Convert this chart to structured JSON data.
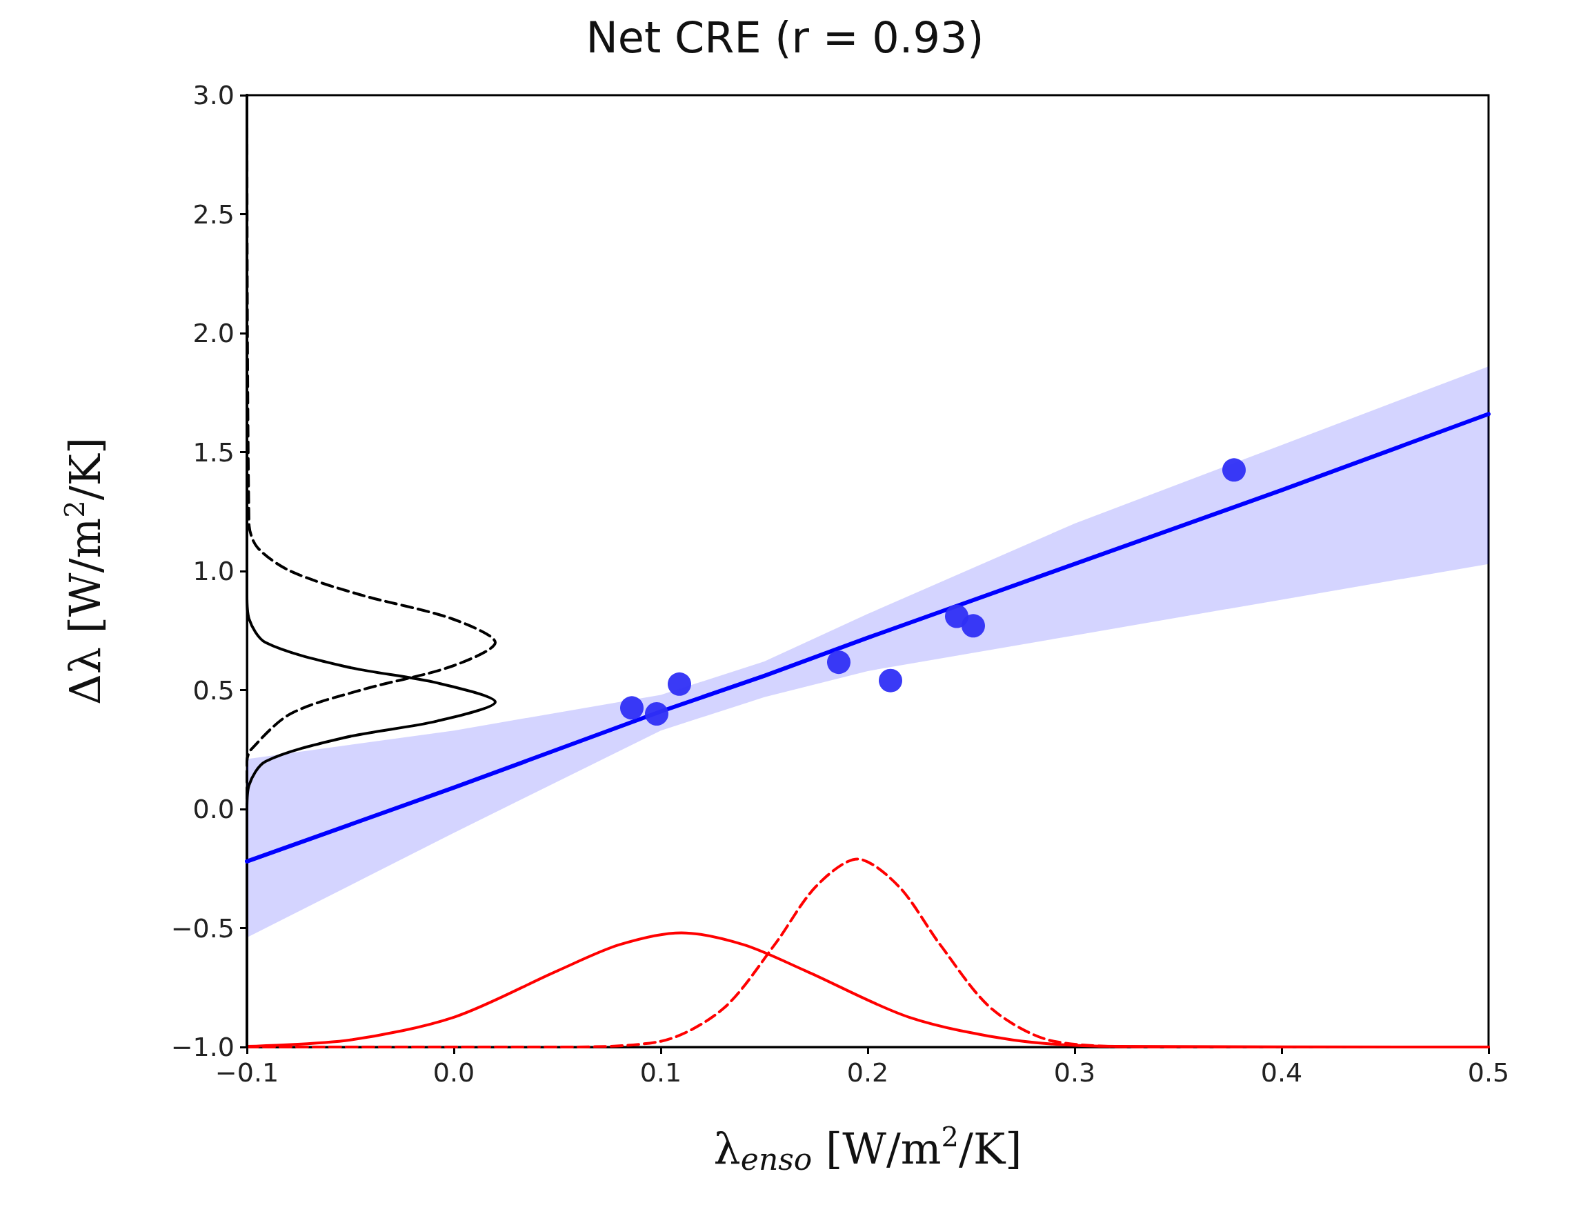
{
  "chart_data": {
    "type": "scatter",
    "title": "Net CRE (r = 0.93)",
    "xlabel": "λ$_{enso}$ [W/m$^{2}$/K]",
    "ylabel": "Δλ [W/m$^{2}$/K]",
    "xlim": [
      -0.1,
      0.5
    ],
    "xticks": [
      {
        "value": -0.1,
        "label": "−0.1"
      },
      {
        "value": 0,
        "label": "0.0"
      },
      0.1,
      0.2,
      0.3,
      0.4,
      0.5
    ],
    "ylim": [
      -1,
      3
    ],
    "yticks": [
      {
        "value": -1,
        "label": "−1.0"
      },
      {
        "value": -0.5,
        "label": "−0.5"
      },
      {
        "value": 0,
        "label": "0.0"
      },
      0.5,
      {
        "value": 1,
        "label": "1.0"
      },
      1.5,
      {
        "value": 2,
        "label": "2.0"
      },
      2.5,
      {
        "value": 3,
        "label": "3.0"
      }
    ],
    "grid": false,
    "series": [
      {
        "type": "line",
        "color": "#0000ff",
        "marker": "none",
        "line_style": "solid",
        "x": [
          -0.1,
          0,
          0.1,
          0.15,
          0.2,
          0.3,
          0.4,
          0.5
        ],
        "values": [
          -0.22,
          0.09,
          0.41,
          0.56,
          0.72,
          1.03,
          1.34,
          1.66
        ],
        "lower": [
          -0.54,
          -0.1,
          0.33,
          0.47,
          0.58,
          0.73,
          0.88,
          1.03
        ],
        "upper": [
          0.21,
          0.33,
          0.48,
          0.62,
          0.82,
          1.2,
          1.53,
          1.86
        ]
      },
      {
        "color": "#2f2ff5",
        "marker": "circle",
        "x": [
          0.086,
          0.098,
          0.109,
          0.186,
          0.211,
          0.243,
          0.251,
          0.377
        ],
        "values": [
          0.425,
          0.4,
          0.525,
          0.617,
          0.54,
          0.81,
          0.77,
          1.425
        ]
      },
      {
        "type": "line",
        "color": "#ff0000",
        "marker": "none",
        "line_style": "solid",
        "x": [
          -0.1,
          -0.05,
          0,
          0.05,
          0.08,
          0.11,
          0.14,
          0.17,
          0.22,
          0.27,
          0.32,
          0.5
        ],
        "values": [
          -0.997,
          -0.97,
          -0.875,
          -0.68,
          -0.57,
          -0.52,
          -0.57,
          -0.68,
          -0.875,
          -0.97,
          -0.997,
          -1
        ]
      },
      {
        "type": "line",
        "color": "#ff0000",
        "marker": "none",
        "line_style": "dashed",
        "x": [
          -0.1,
          0.05,
          0.1,
          0.13,
          0.155,
          0.175,
          0.195,
          0.215,
          0.235,
          0.26,
          0.29,
          0.34,
          0.5
        ],
        "values": [
          -1,
          -1,
          -0.976,
          -0.84,
          -0.57,
          -0.325,
          -0.21,
          -0.325,
          -0.57,
          -0.84,
          -0.976,
          -1,
          -1
        ]
      },
      {
        "type": "line",
        "color": "#000000",
        "marker": "none",
        "line_style": "solid",
        "x": [
          -0.1,
          -0.1,
          -0.099,
          -0.091,
          -0.053,
          -0.008,
          0.02,
          -0.008,
          -0.053,
          -0.091,
          -0.099,
          -0.1,
          -0.1
        ],
        "values": [
          -1,
          0,
          0.1,
          0.2,
          0.3,
          0.37,
          0.45,
          0.53,
          0.6,
          0.7,
          0.8,
          0.9,
          3
        ]
      },
      {
        "type": "line",
        "color": "#000000",
        "marker": "none",
        "line_style": "dashed",
        "x": [
          -0.1,
          -0.1,
          -0.098,
          -0.079,
          -0.045,
          -0.001,
          0.02,
          -0.001,
          -0.045,
          -0.079,
          -0.095,
          -0.099,
          -0.1
        ],
        "values": [
          -1,
          0.2,
          0.25,
          0.4,
          0.5,
          0.6,
          0.7,
          0.8,
          0.9,
          1,
          1.1,
          1.2,
          3
        ]
      }
    ]
  }
}
